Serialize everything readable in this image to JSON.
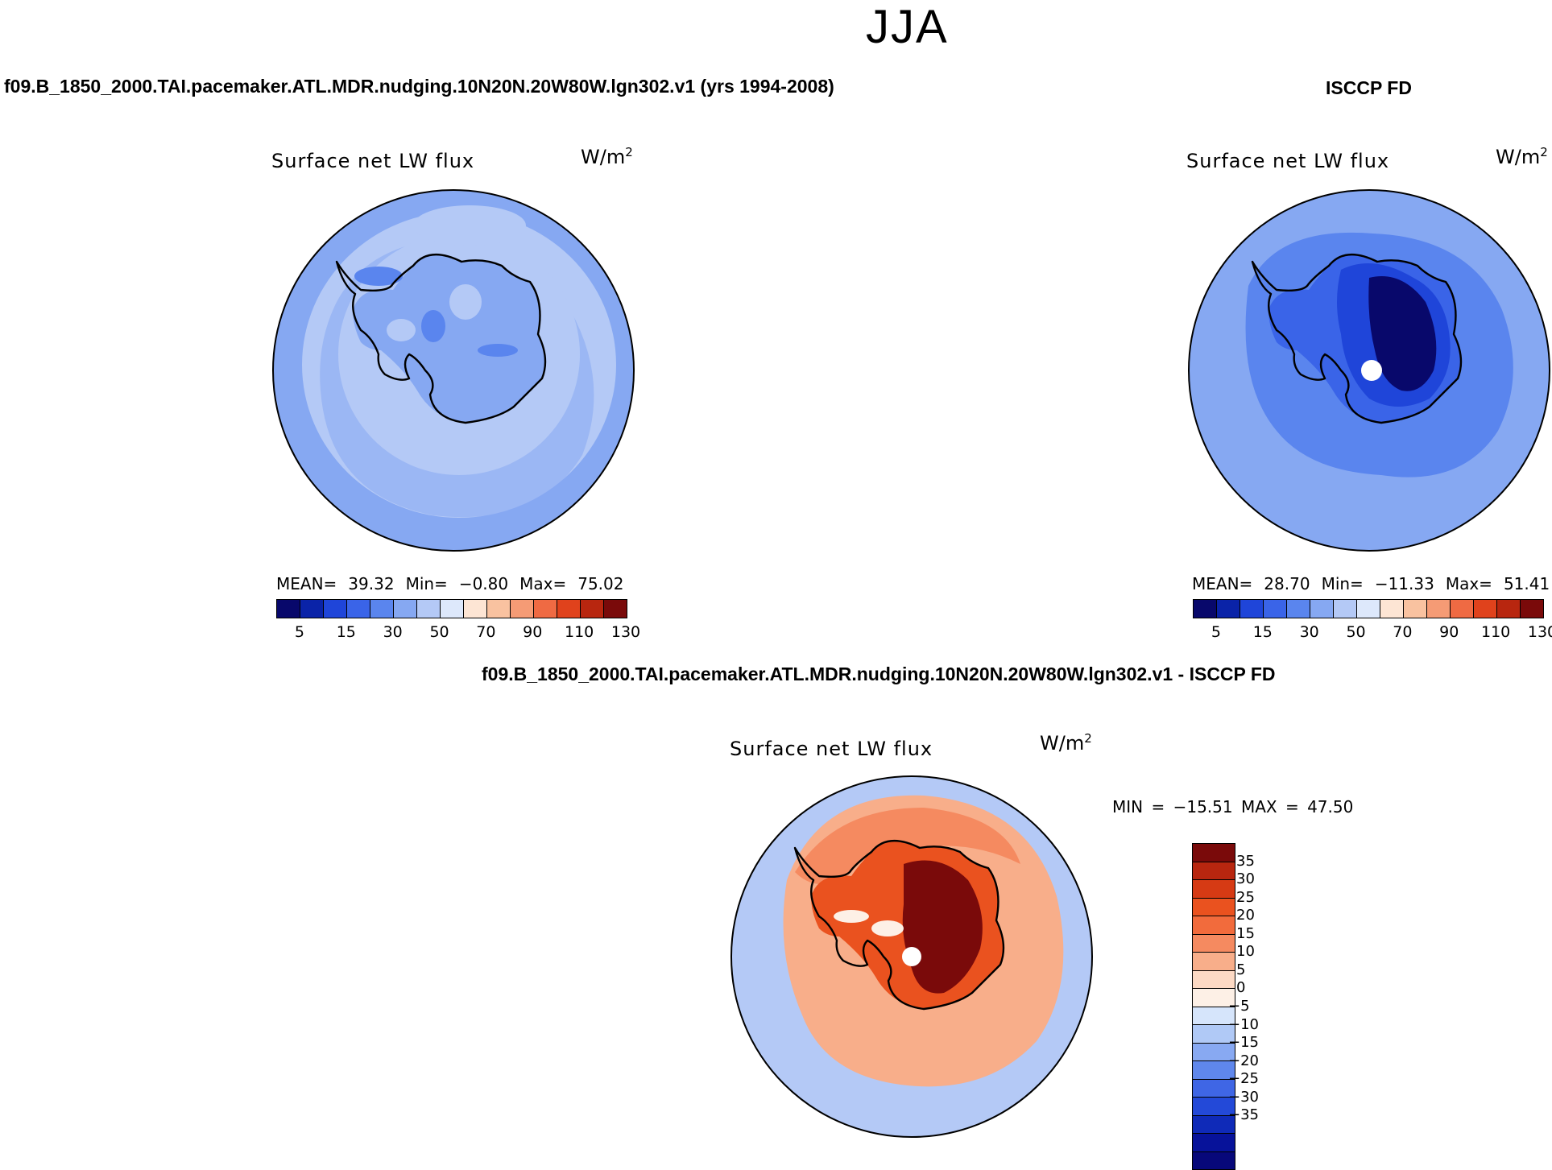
{
  "season": "JJA",
  "case_title": "f09.B_1850_2000.TAI.pacemaker.ATL.MDR.nudging.10N20N.20W80W.lgn302.v1 (yrs 1994-2008)",
  "obs_title": "ISCCP FD",
  "diff_title": "f09.B_1850_2000.TAI.pacemaker.ATL.MDR.nudging.10N20N.20W80W.lgn302.v1 - ISCCP FD",
  "panels": {
    "model": {
      "plot_title": "Surface net LW flux",
      "units_base": "W/m",
      "units_exp": "2",
      "mean_label": "MEAN=",
      "mean": "39.32",
      "min_label": "Min=",
      "min": "−0.80",
      "max_label": "Max=",
      "max": "75.02"
    },
    "obs": {
      "plot_title": "Surface net LW flux",
      "units_base": "W/m",
      "units_exp": "2",
      "mean_label": "MEAN=",
      "mean": "28.70",
      "min_label": "Min=",
      "min": "−11.33",
      "max_label": "Max=",
      "max": "51.41"
    },
    "diff": {
      "plot_title": "Surface net LW flux",
      "units_base": "W/m",
      "units_exp": "2",
      "minmax_text": "MIN = −15.51 MAX =  47.50"
    }
  },
  "abs_colorbar": {
    "colors": [
      "#08086b",
      "#0a23a8",
      "#1f45d9",
      "#3a64e8",
      "#5a85ee",
      "#86a8f2",
      "#b4c9f6",
      "#dde8fb",
      "#fde5d4",
      "#f9c2a0",
      "#f59b75",
      "#ef6a43",
      "#e0421c",
      "#b8260f",
      "#7a0a0a"
    ],
    "tick_labels": [
      "5",
      "15",
      "30",
      "50",
      "70",
      "90",
      "110",
      "130"
    ]
  },
  "diff_colorbar": {
    "colors": [
      "#7a0a0a",
      "#b8260f",
      "#d63a14",
      "#ea521f",
      "#f26b3c",
      "#f58a60",
      "#f8ae8a",
      "#fcd9c4",
      "#fdf0e6",
      "#d6e5fb",
      "#b0c9f6",
      "#88a9f2",
      "#5f87ec",
      "#3f66e5",
      "#2349d8",
      "#0f2ab8",
      "#07129a",
      "#07087a"
    ],
    "tick_labels": [
      "35",
      "30",
      "25",
      "20",
      "15",
      "10",
      "5",
      "0",
      "−5",
      "−10",
      "−15",
      "−20",
      "−25",
      "−30",
      "−35"
    ]
  },
  "maps": {
    "model_field": {
      "ocean": "#86a8f2",
      "inner_ring": "#b4c9f6",
      "outer_ring": "#86a8f2",
      "land": "#86a8f2",
      "land_patch": "#5a85ee",
      "land_light": "#b4c9f6"
    },
    "obs_field": {
      "ocean": "#86a8f2",
      "inner_ring": "#5a85ee",
      "outer_ring": "#86a8f2",
      "land": "#3a64e8",
      "land_patch": "#1f45d9",
      "land_dark": "#08086b"
    },
    "diff_field": {
      "ocean": "#b4c9f6",
      "ring": "#f8ae8a",
      "ring_dark": "#f58a60",
      "land": "#ea521f",
      "land_dark": "#7a0a0a",
      "white_patch": "#fdf0e6"
    }
  }
}
